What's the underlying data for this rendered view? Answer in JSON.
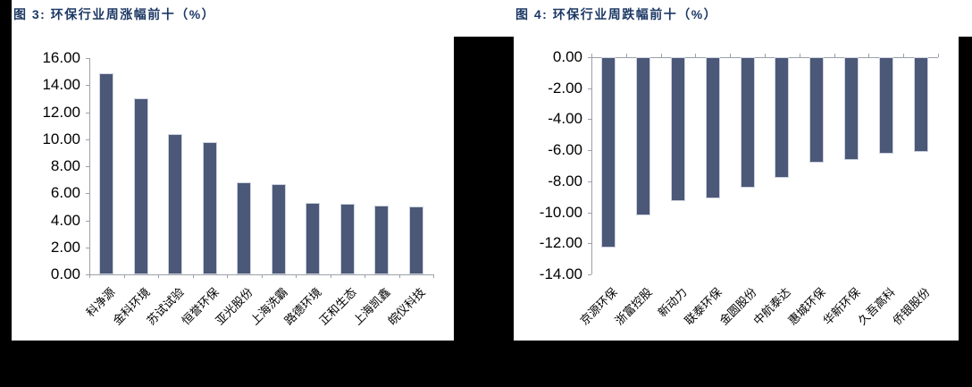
{
  "colors": {
    "title": "#1C3864",
    "bar": "#4B5878",
    "bar_edge": "#CDD2DD",
    "axis": "#9BA0A8",
    "text": "#000000",
    "panel_bg": "#FFFFFF",
    "page_bg": "#000000"
  },
  "chart_data": [
    {
      "type": "bar",
      "title": "图 3: 环保行业周涨幅前十（%）",
      "categories": [
        "科净源",
        "金科环境",
        "苏试试验",
        "恒誉环保",
        "亚光股份",
        "上海洗霸",
        "路德环境",
        "正和生态",
        "上海凯鑫",
        "皖仪科技"
      ],
      "values": [
        14.9,
        13.0,
        10.4,
        9.8,
        6.8,
        6.7,
        5.3,
        5.2,
        5.1,
        5.0
      ],
      "xlabel": "",
      "ylabel": "",
      "ylim": [
        0,
        16
      ],
      "ytick_step": 2,
      "grid": false,
      "legend": false
    },
    {
      "type": "bar",
      "title": "图 4: 环保行业周跌幅前十（%）",
      "categories": [
        "京源环保",
        "浙富控股",
        "新动力",
        "联泰环保",
        "金圆股份",
        "中航泰达",
        "惠城环保",
        "华新环保",
        "久吾高科",
        "侨银股份"
      ],
      "values": [
        -12.3,
        -10.2,
        -9.3,
        -9.1,
        -8.4,
        -7.8,
        -6.8,
        -6.6,
        -6.2,
        -6.1
      ],
      "xlabel": "",
      "ylabel": "",
      "ylim": [
        -14,
        0
      ],
      "ytick_step": 2,
      "grid": false,
      "legend": false
    }
  ]
}
